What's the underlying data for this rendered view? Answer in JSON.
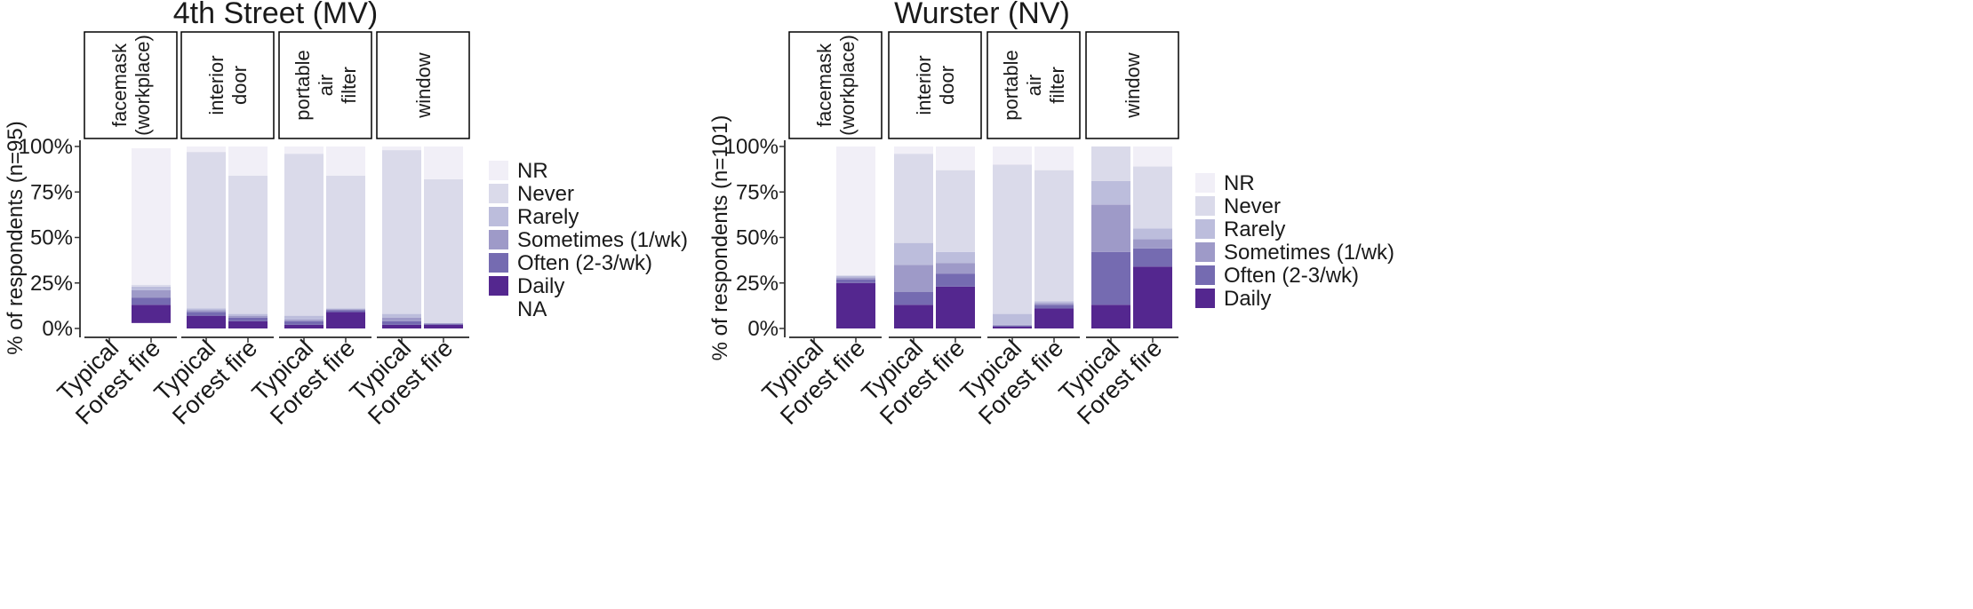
{
  "colors": {
    "NR": "#f1eff7",
    "Never": "#dadaea",
    "Rarely": "#bcbddc",
    "Sometimes (1/wk)": "#9e9ac8",
    "Often (2-3/wk)": "#756bb1",
    "Daily": "#54278f"
  },
  "chart_data": [
    {
      "type": "bar",
      "stacked": true,
      "title": "4th Street (MV)",
      "ylabel": "% of respondents (n=95)",
      "ylim": [
        0,
        100
      ],
      "yticks": [
        "0%",
        "25%",
        "50%",
        "75%",
        "100%"
      ],
      "categories": [
        "Typical",
        "Forest fire"
      ],
      "legend": [
        "NR",
        "Never",
        "Rarely",
        "Sometimes (1/wk)",
        "Often (2-3/wk)",
        "Daily",
        "NA"
      ],
      "legend_position": "right",
      "facets": [
        {
          "label": [
            "facemask",
            "(workplace)"
          ],
          "bars": [
            null,
            {
              "Daily": 10,
              "Often (2-3/wk)": 4,
              "Sometimes (1/wk)": 4,
              "Rarely": 2,
              "Never": 1,
              "NR": 75,
              "NA": 3
            }
          ]
        },
        {
          "label": [
            "interior",
            "door"
          ],
          "bars": [
            {
              "Daily": 7,
              "Often (2-3/wk)": 2,
              "Sometimes (1/wk)": 1,
              "Rarely": 1,
              "Never": 86,
              "NR": 3
            },
            {
              "Daily": 4,
              "Often (2-3/wk)": 2,
              "Sometimes (1/wk)": 1,
              "Rarely": 1,
              "Never": 76,
              "NR": 16
            }
          ]
        },
        {
          "label": [
            "portable",
            "air",
            "filter"
          ],
          "bars": [
            {
              "Daily": 2,
              "Often (2-3/wk)": 2,
              "Sometimes (1/wk)": 1,
              "Rarely": 2,
              "Never": 89,
              "NR": 4
            },
            {
              "Daily": 9,
              "Often (2-3/wk)": 1,
              "Sometimes (1/wk)": 0.5,
              "Rarely": 0.5,
              "Never": 73,
              "NR": 16
            }
          ]
        },
        {
          "label": [
            "window"
          ],
          "bars": [
            {
              "Daily": 2,
              "Often (2-3/wk)": 2,
              "Sometimes (1/wk)": 2,
              "Rarely": 2,
              "Never": 90,
              "NR": 2
            },
            {
              "Daily": 2,
              "Often (2-3/wk)": 0.5,
              "Sometimes (1/wk)": 0.5,
              "Rarely": 0,
              "Never": 79,
              "NR": 18
            }
          ]
        }
      ]
    },
    {
      "type": "bar",
      "stacked": true,
      "title": "Wurster (NV)",
      "ylabel": "% of respondents (n=101)",
      "ylim": [
        0,
        100
      ],
      "yticks": [
        "0%",
        "25%",
        "50%",
        "75%",
        "100%"
      ],
      "categories": [
        "Typical",
        "Forest fire"
      ],
      "legend": [
        "NR",
        "Never",
        "Rarely",
        "Sometimes (1/wk)",
        "Often (2-3/wk)",
        "Daily"
      ],
      "legend_position": "right",
      "facets": [
        {
          "label": [
            "facemask",
            "(workplace)"
          ],
          "bars": [
            null,
            {
              "Daily": 25,
              "Often (2-3/wk)": 2,
              "Sometimes (1/wk)": 1,
              "Rarely": 1,
              "Never": 0,
              "NR": 71
            }
          ]
        },
        {
          "label": [
            "interior",
            "door"
          ],
          "bars": [
            {
              "Daily": 13,
              "Often (2-3/wk)": 7,
              "Sometimes (1/wk)": 15,
              "Rarely": 12,
              "Never": 49,
              "NR": 4
            },
            {
              "Daily": 23,
              "Often (2-3/wk)": 7,
              "Sometimes (1/wk)": 6,
              "Rarely": 6,
              "Never": 45,
              "NR": 13
            }
          ]
        },
        {
          "label": [
            "portable",
            "air",
            "filter"
          ],
          "bars": [
            {
              "Daily": 1,
              "Often (2-3/wk)": 0.5,
              "Sometimes (1/wk)": 0.5,
              "Rarely": 6,
              "Never": 82,
              "NR": 10
            },
            {
              "Daily": 11,
              "Often (2-3/wk)": 2,
              "Sometimes (1/wk)": 1,
              "Rarely": 1,
              "Never": 72,
              "NR": 13
            }
          ]
        },
        {
          "label": [
            "window"
          ],
          "bars": [
            {
              "Daily": 13,
              "Often (2-3/wk)": 29,
              "Sometimes (1/wk)": 26,
              "Rarely": 13,
              "Never": 19,
              "NR": 0
            },
            {
              "Daily": 34,
              "Often (2-3/wk)": 10,
              "Sometimes (1/wk)": 5,
              "Rarely": 6,
              "Never": 34,
              "NR": 11
            }
          ]
        }
      ]
    }
  ]
}
